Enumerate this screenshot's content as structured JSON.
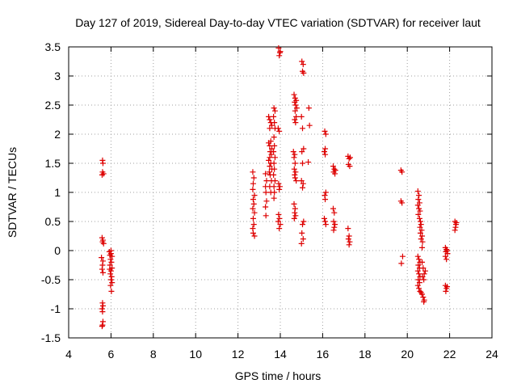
{
  "chart_data": {
    "type": "scatter",
    "title": "Day 127 of 2019, Sidereal Day-to-day VTEC variation (SDTVAR) for receiver laut",
    "xlabel": "GPS time / hours",
    "ylabel": "SDTVAR / TECUs",
    "xlim": [
      4,
      24
    ],
    "ylim": [
      -1.5,
      3.5
    ],
    "x_ticks": [
      4,
      6,
      8,
      10,
      12,
      14,
      16,
      18,
      20,
      22,
      24
    ],
    "x_tick_labels": [
      "4",
      "6",
      "8",
      "10",
      "12",
      "14",
      "16",
      "18",
      "20",
      "22",
      "24"
    ],
    "y_ticks": [
      -1.5,
      -1,
      -0.5,
      0,
      0.5,
      1,
      1.5,
      2,
      2.5,
      3,
      3.5
    ],
    "y_tick_labels": [
      "-1.5",
      "-1",
      "-0.5",
      "0",
      "0.5",
      "1",
      "1.5",
      "2",
      "2.5",
      "3",
      "3.5"
    ],
    "grid": true,
    "marker": "plus",
    "marker_color": "#dd0000",
    "series": [
      {
        "name": "SDTVAR",
        "points": [
          [
            5.6,
            1.55
          ],
          [
            5.62,
            1.5
          ],
          [
            5.6,
            1.35
          ],
          [
            5.65,
            1.32
          ],
          [
            5.58,
            1.3
          ],
          [
            5.58,
            0.22
          ],
          [
            5.62,
            0.18
          ],
          [
            5.6,
            0.15
          ],
          [
            5.65,
            0.12
          ],
          [
            5.55,
            -0.12
          ],
          [
            5.62,
            -0.18
          ],
          [
            5.6,
            -0.25
          ],
          [
            5.58,
            -0.32
          ],
          [
            5.62,
            -0.38
          ],
          [
            5.6,
            -0.9
          ],
          [
            5.62,
            -0.95
          ],
          [
            5.58,
            -1.0
          ],
          [
            5.6,
            -1.05
          ],
          [
            5.62,
            -1.22
          ],
          [
            5.6,
            -1.28
          ],
          [
            5.58,
            -1.3
          ],
          [
            5.92,
            -0.02
          ],
          [
            5.95,
            -0.08
          ],
          [
            6.0,
            -0.05
          ],
          [
            6.05,
            -0.1
          ],
          [
            5.98,
            -0.15
          ],
          [
            6.02,
            -0.2
          ],
          [
            5.95,
            -0.25
          ],
          [
            6.05,
            -0.3
          ],
          [
            6.0,
            -0.35
          ],
          [
            5.97,
            -0.4
          ],
          [
            6.03,
            -0.45
          ],
          [
            6.0,
            -0.5
          ],
          [
            6.05,
            -0.55
          ],
          [
            5.98,
            -0.6
          ],
          [
            6.02,
            -0.7
          ],
          [
            6.0,
            0.0
          ],
          [
            5.94,
            -0.32
          ],
          [
            12.7,
            1.35
          ],
          [
            12.75,
            1.25
          ],
          [
            12.72,
            1.15
          ],
          [
            12.7,
            1.05
          ],
          [
            12.78,
            0.95
          ],
          [
            12.72,
            0.88
          ],
          [
            12.75,
            0.8
          ],
          [
            12.7,
            0.72
          ],
          [
            12.78,
            0.65
          ],
          [
            12.72,
            0.55
          ],
          [
            12.75,
            0.45
          ],
          [
            12.7,
            0.38
          ],
          [
            12.72,
            0.3
          ],
          [
            12.78,
            0.25
          ],
          [
            13.3,
            1.32
          ],
          [
            13.35,
            1.2
          ],
          [
            13.3,
            1.1
          ],
          [
            13.32,
            1.0
          ],
          [
            13.35,
            0.85
          ],
          [
            13.3,
            0.75
          ],
          [
            13.32,
            0.6
          ],
          [
            13.45,
            2.3
          ],
          [
            13.5,
            2.25
          ],
          [
            13.55,
            2.2
          ],
          [
            13.6,
            2.15
          ],
          [
            13.5,
            2.1
          ],
          [
            13.55,
            1.88
          ],
          [
            13.45,
            1.85
          ],
          [
            13.5,
            1.8
          ],
          [
            13.6,
            1.75
          ],
          [
            13.52,
            1.7
          ],
          [
            13.58,
            1.65
          ],
          [
            13.5,
            1.6
          ],
          [
            13.45,
            1.55
          ],
          [
            13.55,
            1.5
          ],
          [
            13.5,
            1.45
          ],
          [
            13.6,
            1.4
          ],
          [
            13.48,
            1.35
          ],
          [
            13.52,
            1.3
          ],
          [
            13.58,
            1.2
          ],
          [
            13.5,
            1.1
          ],
          [
            13.55,
            1.0
          ],
          [
            13.7,
            2.45
          ],
          [
            13.75,
            2.4
          ],
          [
            13.68,
            2.3
          ],
          [
            13.72,
            2.2
          ],
          [
            13.75,
            2.1
          ],
          [
            13.7,
            1.95
          ],
          [
            13.72,
            1.8
          ],
          [
            13.68,
            1.7
          ],
          [
            13.75,
            1.6
          ],
          [
            13.7,
            1.5
          ],
          [
            13.72,
            1.4
          ],
          [
            13.68,
            1.3
          ],
          [
            13.75,
            1.2
          ],
          [
            13.7,
            1.1
          ],
          [
            13.72,
            1.0
          ],
          [
            13.7,
            0.9
          ],
          [
            13.92,
            3.48
          ],
          [
            13.98,
            3.4
          ],
          [
            13.95,
            3.35
          ],
          [
            14.0,
            3.42
          ],
          [
            13.9,
            2.1
          ],
          [
            13.95,
            2.05
          ],
          [
            13.92,
            1.15
          ],
          [
            13.98,
            1.1
          ],
          [
            13.95,
            1.05
          ],
          [
            13.92,
            0.62
          ],
          [
            13.96,
            0.55
          ],
          [
            13.9,
            0.5
          ],
          [
            14.0,
            0.45
          ],
          [
            13.95,
            0.38
          ],
          [
            14.65,
            2.68
          ],
          [
            14.7,
            2.62
          ],
          [
            14.75,
            2.58
          ],
          [
            14.68,
            2.55
          ],
          [
            14.72,
            2.5
          ],
          [
            14.78,
            2.45
          ],
          [
            14.7,
            2.4
          ],
          [
            14.75,
            2.3
          ],
          [
            14.68,
            2.25
          ],
          [
            14.72,
            2.2
          ],
          [
            14.62,
            1.7
          ],
          [
            14.68,
            1.65
          ],
          [
            14.65,
            1.6
          ],
          [
            14.7,
            1.5
          ],
          [
            14.66,
            1.4
          ],
          [
            14.72,
            1.35
          ],
          [
            14.68,
            1.3
          ],
          [
            14.7,
            1.25
          ],
          [
            14.75,
            1.2
          ],
          [
            14.65,
            0.8
          ],
          [
            14.7,
            0.72
          ],
          [
            14.68,
            0.65
          ],
          [
            14.72,
            0.6
          ],
          [
            14.66,
            0.55
          ],
          [
            15.02,
            3.25
          ],
          [
            15.08,
            3.2
          ],
          [
            15.05,
            3.08
          ],
          [
            15.1,
            3.05
          ],
          [
            15.0,
            2.3
          ],
          [
            15.05,
            2.1
          ],
          [
            15.1,
            1.75
          ],
          [
            15.02,
            1.7
          ],
          [
            15.05,
            1.5
          ],
          [
            15.0,
            1.2
          ],
          [
            15.08,
            1.15
          ],
          [
            15.05,
            1.08
          ],
          [
            15.1,
            0.5
          ],
          [
            15.05,
            0.45
          ],
          [
            15.02,
            0.3
          ],
          [
            15.08,
            0.2
          ],
          [
            15.0,
            0.12
          ],
          [
            15.35,
            2.45
          ],
          [
            15.38,
            2.15
          ],
          [
            15.32,
            1.52
          ],
          [
            16.1,
            2.05
          ],
          [
            16.15,
            2.0
          ],
          [
            16.12,
            1.75
          ],
          [
            16.08,
            1.7
          ],
          [
            16.12,
            1.65
          ],
          [
            16.15,
            1.0
          ],
          [
            16.1,
            0.95
          ],
          [
            16.12,
            0.88
          ],
          [
            16.08,
            0.55
          ],
          [
            16.12,
            0.5
          ],
          [
            16.15,
            0.45
          ],
          [
            16.5,
            1.45
          ],
          [
            16.55,
            1.4
          ],
          [
            16.6,
            1.38
          ],
          [
            16.52,
            1.35
          ],
          [
            16.58,
            1.32
          ],
          [
            16.5,
            0.72
          ],
          [
            16.55,
            0.65
          ],
          [
            16.52,
            0.5
          ],
          [
            16.58,
            0.45
          ],
          [
            16.55,
            0.4
          ],
          [
            16.52,
            0.35
          ],
          [
            17.2,
            1.62
          ],
          [
            17.25,
            1.58
          ],
          [
            17.3,
            1.6
          ],
          [
            17.22,
            1.48
          ],
          [
            17.28,
            1.45
          ],
          [
            17.2,
            0.38
          ],
          [
            17.25,
            0.25
          ],
          [
            17.22,
            0.2
          ],
          [
            17.28,
            0.15
          ],
          [
            17.25,
            0.1
          ],
          [
            19.7,
            1.38
          ],
          [
            19.75,
            1.35
          ],
          [
            19.7,
            0.85
          ],
          [
            19.75,
            0.82
          ],
          [
            19.78,
            -0.1
          ],
          [
            19.72,
            -0.22
          ],
          [
            20.5,
            1.02
          ],
          [
            20.55,
            0.95
          ],
          [
            20.52,
            0.88
          ],
          [
            20.58,
            0.82
          ],
          [
            20.5,
            0.78
          ],
          [
            20.55,
            0.72
          ],
          [
            20.6,
            0.68
          ],
          [
            20.52,
            0.62
          ],
          [
            20.58,
            0.55
          ],
          [
            20.62,
            0.5
          ],
          [
            20.65,
            0.45
          ],
          [
            20.6,
            0.4
          ],
          [
            20.68,
            0.35
          ],
          [
            20.62,
            0.3
          ],
          [
            20.7,
            0.25
          ],
          [
            20.65,
            0.2
          ],
          [
            20.72,
            0.15
          ],
          [
            20.7,
            0.05
          ],
          [
            20.5,
            -0.1
          ],
          [
            20.55,
            -0.15
          ],
          [
            20.6,
            -0.2
          ],
          [
            20.52,
            -0.25
          ],
          [
            20.58,
            -0.3
          ],
          [
            20.5,
            -0.35
          ],
          [
            20.55,
            -0.4
          ],
          [
            20.6,
            -0.45
          ],
          [
            20.52,
            -0.5
          ],
          [
            20.58,
            -0.55
          ],
          [
            20.5,
            -0.6
          ],
          [
            20.55,
            -0.65
          ],
          [
            20.6,
            -0.7
          ],
          [
            20.65,
            -0.72
          ],
          [
            20.7,
            -0.75
          ],
          [
            20.75,
            -0.8
          ],
          [
            20.8,
            -0.85
          ],
          [
            20.78,
            -0.88
          ],
          [
            20.7,
            -0.2
          ],
          [
            20.75,
            -0.3
          ],
          [
            20.8,
            -0.4
          ],
          [
            20.72,
            -0.45
          ],
          [
            20.78,
            -0.5
          ],
          [
            20.85,
            -0.35
          ],
          [
            21.8,
            0.05
          ],
          [
            21.85,
            0.02
          ],
          [
            21.82,
            -0.02
          ],
          [
            21.9,
            -0.05
          ],
          [
            21.8,
            -0.1
          ],
          [
            21.85,
            -0.15
          ],
          [
            21.88,
            0.0
          ],
          [
            21.8,
            -0.6
          ],
          [
            21.85,
            -0.65
          ],
          [
            21.82,
            -0.7
          ],
          [
            21.88,
            -0.62
          ],
          [
            22.25,
            0.5
          ],
          [
            22.3,
            0.45
          ],
          [
            22.28,
            0.4
          ],
          [
            22.32,
            0.48
          ],
          [
            22.25,
            0.35
          ]
        ]
      }
    ]
  }
}
